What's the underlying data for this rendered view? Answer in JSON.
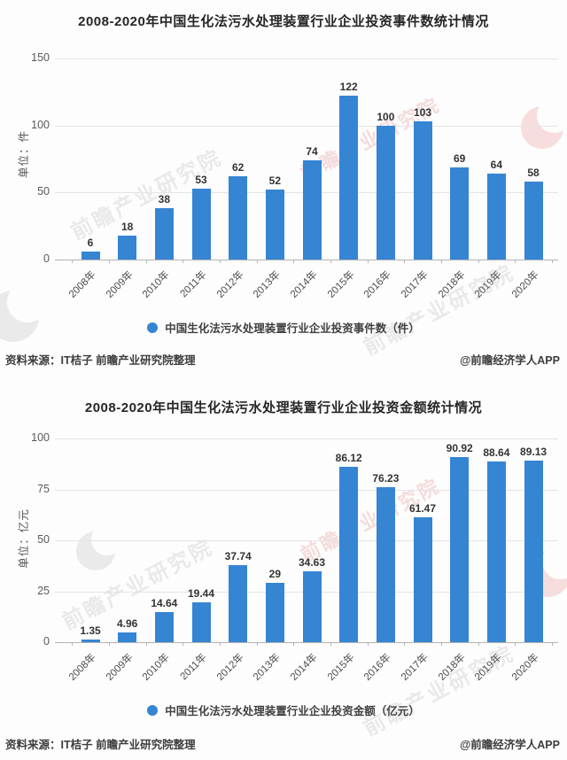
{
  "page": {
    "background": "#fdfdfd"
  },
  "colors": {
    "bar": "#3585d3",
    "grid": "#e4e4e4",
    "axis": "#b3b3b3",
    "title": "#262626"
  },
  "watermark": {
    "text": "前瞻产业研究院"
  },
  "sources": {
    "left": "资料来源：IT桔子 前瞻产业研究院整理",
    "right": "@前瞻经济学人APP"
  },
  "chart_data": [
    {
      "type": "bar",
      "title": "2008-2020年中国生化法污水处理装置行业企业投资事件数统计情况",
      "ylabel": "单位：件",
      "xlabel": "",
      "ylim": [
        0,
        150
      ],
      "yticks": [
        0,
        50,
        100,
        150
      ],
      "grid": true,
      "legend_position": "bottom",
      "categories": [
        "2008年",
        "2009年",
        "2010年",
        "2011年",
        "2012年",
        "2013年",
        "2014年",
        "2015年",
        "2016年",
        "2017年",
        "2018年",
        "2019年",
        "2020年"
      ],
      "values": [
        6,
        18,
        38,
        53,
        62,
        52,
        74,
        122,
        100,
        103,
        69,
        64,
        58
      ],
      "value_labels": [
        "6",
        "18",
        "38",
        "53",
        "62",
        "52",
        "74",
        "122",
        "100",
        "103",
        "69",
        "64",
        "58"
      ],
      "legend": "中国生化法污水处理装置行业企业投资事件数（件）"
    },
    {
      "type": "bar",
      "title": "2008-2020年中国生化法污水处理装置行业企业投资金额统计情况",
      "ylabel": "单位：亿元",
      "xlabel": "",
      "ylim": [
        0,
        100
      ],
      "yticks": [
        0,
        25,
        50,
        75,
        100
      ],
      "grid": true,
      "legend_position": "bottom",
      "categories": [
        "2008年",
        "2009年",
        "2010年",
        "2011年",
        "2012年",
        "2013年",
        "2014年",
        "2015年",
        "2016年",
        "2017年",
        "2018年",
        "2019年",
        "2020年"
      ],
      "values": [
        1.35,
        4.96,
        14.64,
        19.44,
        37.74,
        29,
        34.63,
        86.12,
        76.23,
        61.47,
        90.92,
        88.64,
        89.13
      ],
      "value_labels": [
        "1.35",
        "4.96",
        "14.64",
        "19.44",
        "37.74",
        "29",
        "34.63",
        "86.12",
        "76.23",
        "61.47",
        "90.92",
        "88.64",
        "89.13"
      ],
      "legend": "中国生化法污水处理装置行业企业投资金额（亿元）"
    }
  ]
}
